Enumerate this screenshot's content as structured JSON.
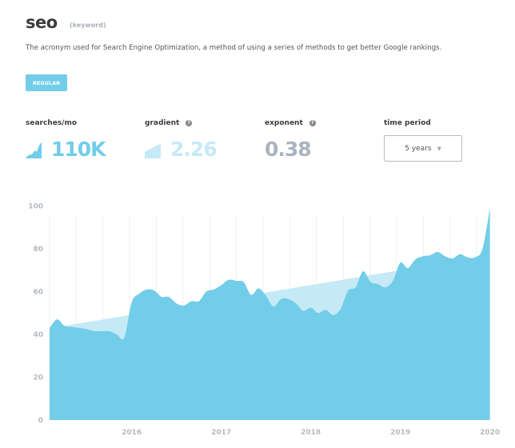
{
  "keyword": {
    "title": "seo",
    "tag": "(keyword)",
    "description": "The acronym used for Search Engine Optimization, a method of using a series of methods to get better Google rankings.",
    "badge": "REGULAR"
  },
  "metrics": {
    "searches": {
      "label": "searches/mo",
      "value": "110K",
      "icon": "area-chart-icon",
      "color": "#72cde9"
    },
    "gradient": {
      "label": "gradient",
      "value": "2.26",
      "icon": "wedge-icon",
      "color": "#c5eaf6"
    },
    "exponent": {
      "label": "exponent",
      "value": "0.38",
      "color": "#aab3bf"
    },
    "time_period": {
      "label": "time period",
      "selected": "5 years"
    }
  },
  "help_icon": "?",
  "chart_data": {
    "type": "area",
    "x_start": "2015-02",
    "x_step": "month",
    "values": [
      43,
      47,
      44,
      43.5,
      43,
      42.5,
      41.5,
      41.5,
      41.5,
      40,
      38.5,
      55,
      59,
      61,
      60.5,
      57.5,
      57.5,
      54.5,
      53.5,
      55.5,
      55.5,
      60,
      61,
      63,
      65.5,
      65,
      64.5,
      58.5,
      61.5,
      58,
      53,
      56.5,
      56.5,
      54.5,
      51,
      52.5,
      50,
      51.5,
      49,
      52,
      60.5,
      62,
      69.5,
      64.5,
      63.5,
      62,
      65,
      73.5,
      71,
      75,
      76.5,
      77,
      78.5,
      76.5,
      75.5,
      77.5,
      76,
      76,
      80,
      99
    ],
    "trend": {
      "from": [
        "2015-04",
        44
      ],
      "to": [
        "2019-01",
        70
      ]
    },
    "xticks": [
      "2016",
      "2017",
      "2018",
      "2019",
      "2020"
    ],
    "yticks": [
      "0",
      "20",
      "40",
      "60",
      "80",
      "100"
    ],
    "ylim": [
      0,
      100
    ],
    "colors": {
      "series": "#72cde9",
      "trend": "#c5eaf6"
    },
    "grid": "vertical"
  }
}
